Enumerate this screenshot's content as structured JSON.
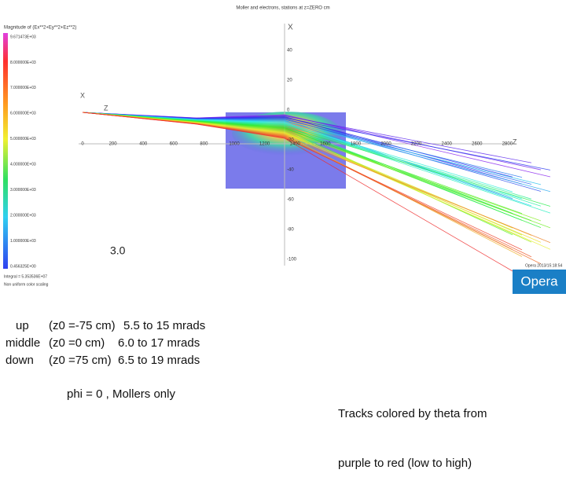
{
  "header": {
    "title": "Moller and electrons, stations at z=ZERO cm"
  },
  "colorbar": {
    "title": "Magnitude of (Ex**2+Ey**2+Ez**2)",
    "labels": [
      "9.671473E+03",
      "8.000000E+03",
      "7.000000E+03",
      "6.000000E+03",
      "5.000000E+03",
      "4.000000E+03",
      "3.000000E+03",
      "2.000000E+03",
      "1.000000E+03",
      "0.456325E+00"
    ],
    "integral": "Integral = 5.353536E+07",
    "scaling": "Non uniform color scaling"
  },
  "plot": {
    "x_axis_label": "X",
    "z_axis_label": "Z",
    "left_x_label": "X",
    "left_z_label": "Z",
    "x_ticks": [
      "0",
      "200",
      "400",
      "600",
      "800",
      "1000",
      "1200",
      "1400",
      "1600",
      "1800",
      "2000",
      "2200",
      "2400",
      "2600",
      "2800"
    ],
    "y_ticks": [
      "40",
      "20",
      "0",
      "-20",
      "-40",
      "-60",
      "-80",
      "-100"
    ],
    "annotation": "3.0",
    "stamp": "Opera 2013/15:18:54"
  },
  "logo": "Opera",
  "legend": {
    "rows": [
      [
        "up",
        "(z0 =-75 cm)",
        "5.5 to 15 mrads"
      ],
      [
        "middle",
        "(z0 =0 cm)",
        "6.0 to 17 mrads"
      ],
      [
        "down",
        "(z0 =75 cm)",
        "6.5 to 19 mrads"
      ]
    ]
  },
  "caption": "phi = 0 , Mollers only",
  "note": [
    "Tracks colored by theta from",
    "purple to red (low to high)"
  ]
}
